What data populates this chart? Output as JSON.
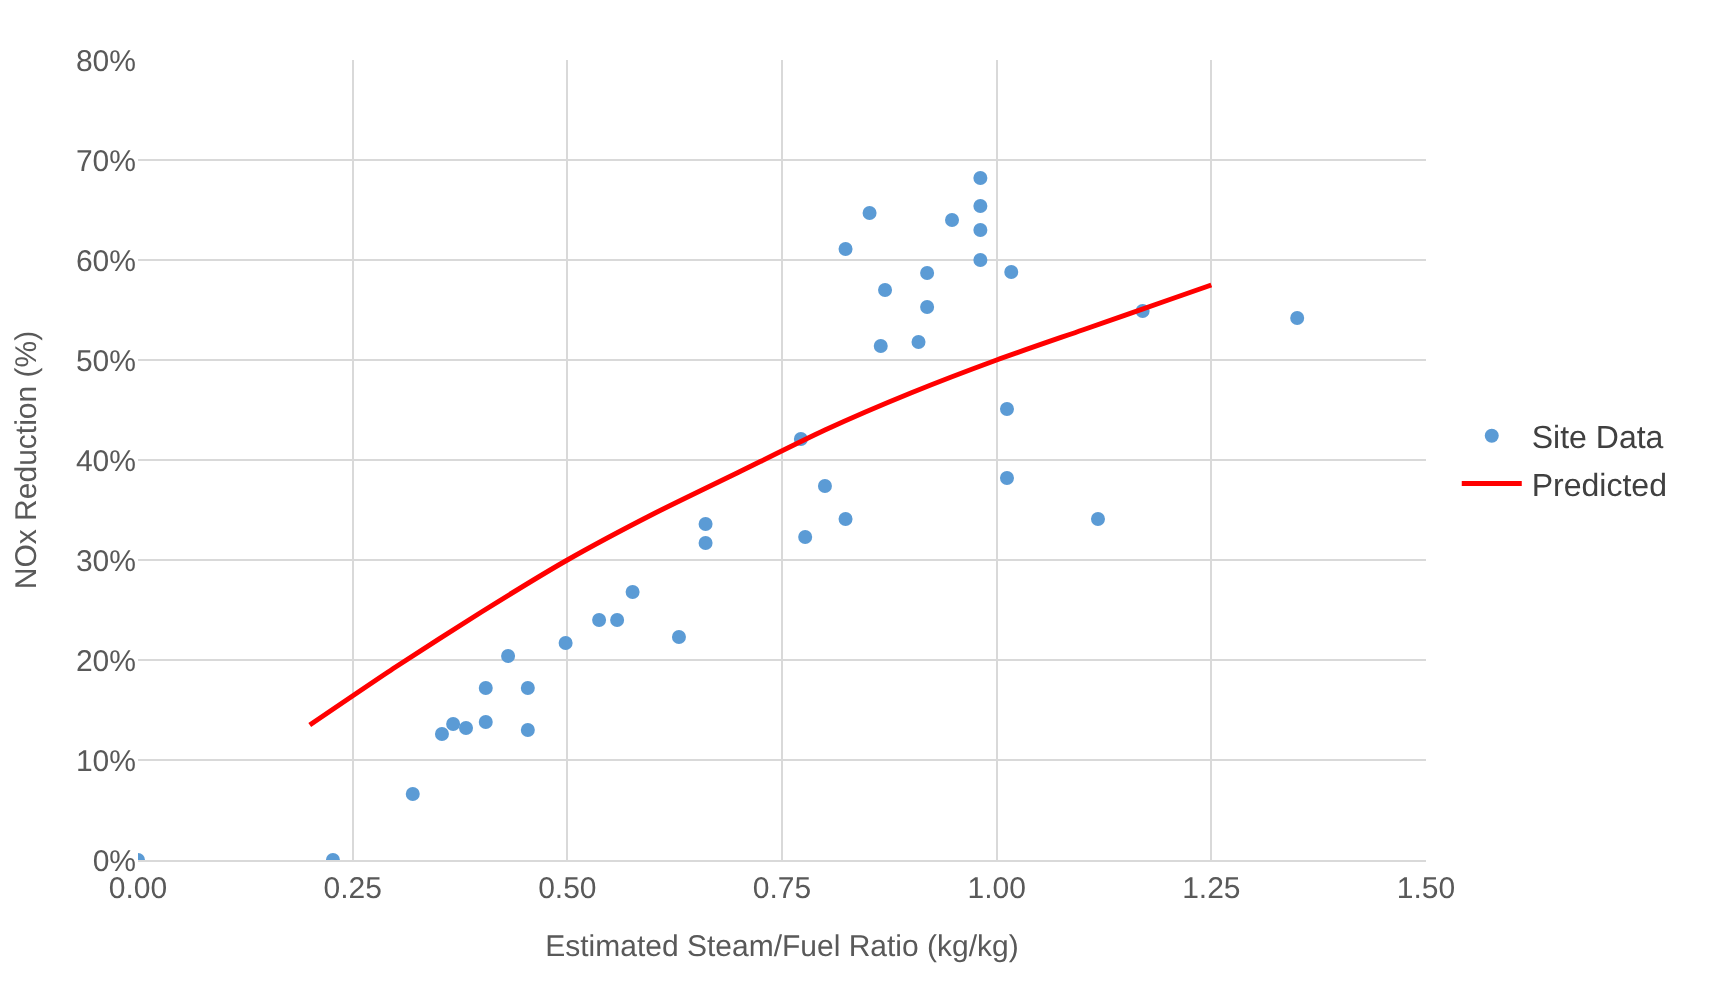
{
  "chart_data": {
    "type": "scatter",
    "xlabel": "Estimated Steam/Fuel Ratio (kg/kg)",
    "ylabel": "NOx Reduction (%)",
    "xlim": [
      0,
      1.5
    ],
    "xticks": [
      {
        "value": 0,
        "label": "0.00"
      },
      {
        "value": 0.25,
        "label": "0.25"
      },
      {
        "value": 0.5,
        "label": "0.50"
      },
      {
        "value": 0.75,
        "label": "0.75"
      },
      {
        "value": 1,
        "label": "1.00"
      },
      {
        "value": 1.25,
        "label": "1.25"
      },
      {
        "value": 1.5,
        "label": "1.50"
      }
    ],
    "ylim": [
      0,
      80
    ],
    "yticks": [
      {
        "value": 0,
        "label": "0%"
      },
      {
        "value": 10,
        "label": "10%"
      },
      {
        "value": 20,
        "label": "20%"
      },
      {
        "value": 30,
        "label": "30%"
      },
      {
        "value": 40,
        "label": "40%"
      },
      {
        "value": 50,
        "label": "50%"
      },
      {
        "value": 60,
        "label": "60%"
      },
      {
        "value": 70,
        "label": "70%"
      },
      {
        "value": 80,
        "label": "80%"
      }
    ],
    "grid": true,
    "legend": "right",
    "series": [
      {
        "name": "Site Data",
        "marker": "circle",
        "color": "#5b9bd5",
        "x": [
          0,
          0.227,
          0.32,
          0.354,
          0.367,
          0.382,
          0.405,
          0.405,
          0.431,
          0.454,
          0.454,
          0.498,
          0.537,
          0.558,
          0.576,
          0.63,
          0.661,
          0.661,
          0.772,
          0.777,
          0.8,
          0.824,
          0.824,
          0.852,
          0.865,
          0.87,
          0.909,
          0.919,
          0.919,
          0.948,
          0.981,
          0.981,
          0.981,
          0.981,
          1.012,
          1.012,
          1.017,
          1.118,
          1.17,
          1.35
        ],
        "values": [
          0,
          0,
          6.6,
          12.6,
          13.6,
          13.2,
          17.2,
          13.8,
          20.4,
          17.2,
          13.0,
          21.7,
          24.0,
          24.0,
          26.8,
          22.3,
          33.6,
          31.7,
          42.1,
          32.3,
          37.4,
          34.1,
          61.1,
          64.7,
          51.4,
          57.0,
          51.8,
          58.7,
          55.3,
          64.0,
          68.2,
          65.4,
          63.0,
          60.0,
          45.1,
          38.2,
          58.8,
          34.1,
          54.9,
          54.2
        ]
      },
      {
        "name": "Predicted",
        "type": "line",
        "marker": "none",
        "line_style": "solid",
        "color": "#ff0000",
        "x": [
          0.2,
          0.3,
          0.4,
          0.5,
          0.6,
          0.7,
          0.8,
          0.9,
          1.0,
          1.1,
          1.2,
          1.25
        ],
        "values": [
          13.5,
          19.3,
          24.8,
          30.0,
          34.6,
          38.8,
          43.0,
          46.7,
          50.0,
          53.0,
          56.0,
          57.5
        ]
      }
    ]
  }
}
